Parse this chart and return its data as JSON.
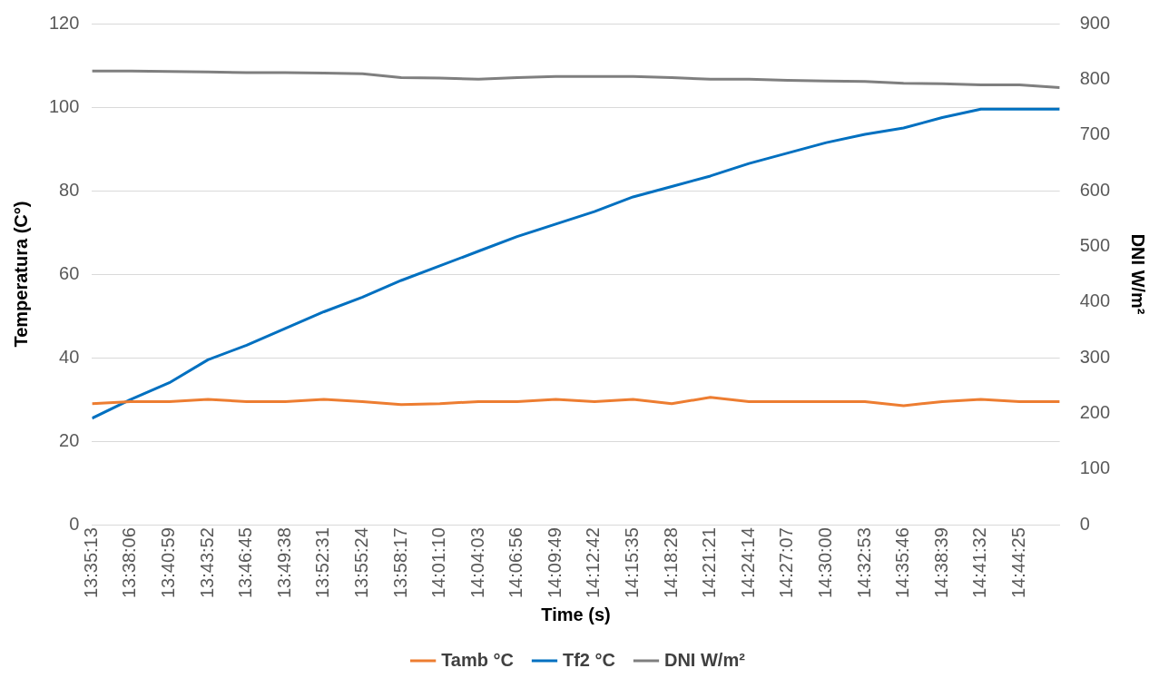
{
  "chart_data": {
    "type": "line",
    "xlabel": "Time (s)",
    "ylabel": "Temperatura (C°)",
    "y2label": "DNI W/m²",
    "x": [
      13.58694,
      13.635,
      13.68306,
      13.73111,
      13.77917,
      13.82722,
      13.87528,
      13.92333,
      13.97139,
      14.01944,
      14.0675,
      14.11556,
      14.16361,
      14.21167,
      14.25972,
      14.30778,
      14.35583,
      14.40389,
      14.45194,
      14.5,
      14.54806,
      14.59611,
      14.64417,
      14.69222,
      14.74028,
      14.79028
    ],
    "series": [
      {
        "name": "Tamb °C",
        "color": "#ed7d31",
        "values": [
          29,
          29.5,
          29.5,
          30,
          29.5,
          29.5,
          30,
          29.5,
          28.8,
          29,
          29.5,
          29.5,
          30,
          29.5,
          30,
          29,
          30.5,
          29.5,
          29.5,
          29.5,
          29.5,
          28.5,
          29.5,
          30,
          29.5,
          29.5
        ]
      },
      {
        "name": "Tf2 °C",
        "color": "#0070c0",
        "values": [
          25.5,
          30,
          34,
          39.5,
          43,
          47,
          51,
          54.5,
          58.5,
          62,
          65.5,
          69,
          72,
          75,
          78.5,
          81,
          83.5,
          86.5,
          89,
          91.5,
          93.5,
          95,
          97.5,
          99.5,
          99.5,
          99.5
        ]
      },
      {
        "name": "DNI W/m²",
        "color": "#7f7f7f",
        "axis": "y2",
        "values": [
          815,
          815,
          814,
          813,
          812,
          812,
          811,
          810,
          803,
          802,
          800,
          803,
          805,
          805,
          805,
          803,
          800,
          800,
          798,
          797,
          796,
          793,
          792,
          790,
          790,
          785
        ]
      }
    ],
    "xlim": [
      13.58694,
      14.79028
    ],
    "xticks": [
      {
        "value": 13.58694,
        "label": "13:35:13"
      },
      {
        "value": 13.635,
        "label": "13:38:06"
      },
      {
        "value": 13.68306,
        "label": "13:40:59"
      },
      {
        "value": 13.73111,
        "label": "13:43:52"
      },
      {
        "value": 13.77917,
        "label": "13:46:45"
      },
      {
        "value": 13.82722,
        "label": "13:49:38"
      },
      {
        "value": 13.87528,
        "label": "13:52:31"
      },
      {
        "value": 13.92333,
        "label": "13:55:24"
      },
      {
        "value": 13.97139,
        "label": "13:58:17"
      },
      {
        "value": 14.01944,
        "label": "14:01:10"
      },
      {
        "value": 14.0675,
        "label": "14:04:03"
      },
      {
        "value": 14.11556,
        "label": "14:06:56"
      },
      {
        "value": 14.16361,
        "label": "14:09:49"
      },
      {
        "value": 14.21167,
        "label": "14:12:42"
      },
      {
        "value": 14.25972,
        "label": "14:15:35"
      },
      {
        "value": 14.30778,
        "label": "14:18:28"
      },
      {
        "value": 14.35583,
        "label": "14:21:21"
      },
      {
        "value": 14.40389,
        "label": "14:24:14"
      },
      {
        "value": 14.45194,
        "label": "14:27:07"
      },
      {
        "value": 14.5,
        "label": "14:30:00"
      },
      {
        "value": 14.54806,
        "label": "14:32:53"
      },
      {
        "value": 14.59611,
        "label": "14:35:46"
      },
      {
        "value": 14.64417,
        "label": "14:38:39"
      },
      {
        "value": 14.69222,
        "label": "14:41:32"
      },
      {
        "value": 14.74028,
        "label": "14:44:25"
      }
    ],
    "ylim": [
      0,
      120
    ],
    "yticks": [
      0,
      20,
      40,
      60,
      80,
      100,
      120
    ],
    "y2lim": [
      0,
      900
    ],
    "y2ticks": [
      0,
      100,
      200,
      300,
      400,
      500,
      600,
      700,
      800,
      900
    ],
    "grid": "y",
    "legend": "bottom",
    "marker": "none",
    "line_style": "solid"
  }
}
